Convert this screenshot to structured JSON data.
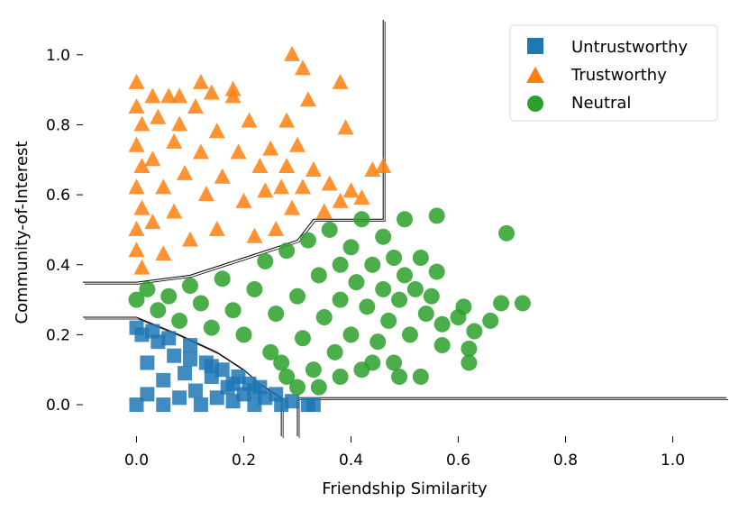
{
  "chart_data": {
    "type": "scatter",
    "title": "",
    "xlabel": "Friendship Similarity",
    "ylabel": "Community-of-Interest",
    "xlim": [
      -0.1,
      1.1
    ],
    "ylim": [
      -0.09,
      1.1
    ],
    "x_ticks": [
      0.0,
      0.2,
      0.4,
      0.6,
      0.8,
      1.0
    ],
    "x_tick_labels": [
      "0.0",
      "0.2",
      "0.4",
      "0.6",
      "0.8",
      "1.0"
    ],
    "y_ticks": [
      0.0,
      0.2,
      0.4,
      0.6,
      0.8,
      1.0
    ],
    "y_tick_labels": [
      "0.0",
      "0.2",
      "0.4",
      "0.6",
      "0.8",
      "1.0"
    ],
    "legend_position": "top-right",
    "grid": false,
    "series": [
      {
        "name": "Untrustworthy",
        "marker": "square",
        "color": "#1f77b4",
        "points": [
          [
            0.0,
            0.0
          ],
          [
            0.01,
            0.2
          ],
          [
            0.02,
            0.12
          ],
          [
            0.02,
            0.03
          ],
          [
            0.04,
            0.18
          ],
          [
            0.05,
            0.07
          ],
          [
            0.05,
            0.0
          ],
          [
            0.07,
            0.14
          ],
          [
            0.08,
            0.02
          ],
          [
            0.09,
            0.09
          ],
          [
            0.1,
            0.17
          ],
          [
            0.11,
            0.04
          ],
          [
            0.12,
            0.0
          ],
          [
            0.13,
            0.12
          ],
          [
            0.14,
            0.08
          ],
          [
            0.15,
            0.02
          ],
          [
            0.16,
            0.1
          ],
          [
            0.17,
            0.05
          ],
          [
            0.18,
            0.01
          ],
          [
            0.19,
            0.08
          ],
          [
            0.2,
            0.03
          ],
          [
            0.21,
            0.06
          ],
          [
            0.22,
            0.0
          ],
          [
            0.23,
            0.05
          ],
          [
            0.24,
            0.02
          ],
          [
            0.26,
            0.03
          ],
          [
            0.27,
            0.0
          ],
          [
            0.29,
            0.01
          ],
          [
            0.32,
            0.0
          ],
          [
            0.33,
            0.0
          ],
          [
            0.0,
            0.22
          ],
          [
            0.03,
            0.21
          ],
          [
            0.06,
            0.19
          ],
          [
            0.1,
            0.13
          ],
          [
            0.14,
            0.11
          ],
          [
            0.18,
            0.06
          ],
          [
            0.22,
            0.04
          ]
        ]
      },
      {
        "name": "Trustworthy",
        "marker": "triangle",
        "color": "#ff7f0e",
        "points": [
          [
            0.0,
            0.92
          ],
          [
            0.0,
            0.85
          ],
          [
            0.01,
            0.8
          ],
          [
            0.0,
            0.74
          ],
          [
            0.01,
            0.68
          ],
          [
            0.0,
            0.62
          ],
          [
            0.01,
            0.56
          ],
          [
            0.0,
            0.5
          ],
          [
            0.0,
            0.44
          ],
          [
            0.01,
            0.39
          ],
          [
            0.03,
            0.88
          ],
          [
            0.03,
            0.7
          ],
          [
            0.03,
            0.52
          ],
          [
            0.04,
            0.82
          ],
          [
            0.05,
            0.62
          ],
          [
            0.05,
            0.43
          ],
          [
            0.06,
            0.88
          ],
          [
            0.07,
            0.75
          ],
          [
            0.07,
            0.55
          ],
          [
            0.08,
            0.88
          ],
          [
            0.09,
            0.66
          ],
          [
            0.1,
            0.47
          ],
          [
            0.11,
            0.85
          ],
          [
            0.12,
            0.72
          ],
          [
            0.13,
            0.6
          ],
          [
            0.14,
            0.89
          ],
          [
            0.15,
            0.78
          ],
          [
            0.15,
            0.5
          ],
          [
            0.16,
            0.65
          ],
          [
            0.18,
            0.88
          ],
          [
            0.19,
            0.72
          ],
          [
            0.2,
            0.58
          ],
          [
            0.21,
            0.81
          ],
          [
            0.22,
            0.48
          ],
          [
            0.23,
            0.68
          ],
          [
            0.24,
            0.61
          ],
          [
            0.25,
            0.73
          ],
          [
            0.26,
            0.5
          ],
          [
            0.27,
            0.62
          ],
          [
            0.28,
            0.68
          ],
          [
            0.29,
            0.56
          ],
          [
            0.3,
            0.74
          ],
          [
            0.31,
            0.62
          ],
          [
            0.33,
            0.67
          ],
          [
            0.35,
            0.55
          ],
          [
            0.36,
            0.63
          ],
          [
            0.38,
            0.58
          ],
          [
            0.4,
            0.61
          ],
          [
            0.42,
            0.59
          ],
          [
            0.44,
            0.67
          ],
          [
            0.46,
            0.68
          ],
          [
            0.29,
            1.0
          ],
          [
            0.31,
            0.96
          ],
          [
            0.38,
            0.92
          ],
          [
            0.39,
            0.79
          ],
          [
            0.32,
            0.87
          ],
          [
            0.28,
            0.81
          ],
          [
            0.12,
            0.92
          ],
          [
            0.08,
            0.8
          ],
          [
            0.18,
            0.9
          ]
        ]
      },
      {
        "name": "Neutral",
        "marker": "circle",
        "color": "#2ca02c",
        "points": [
          [
            0.0,
            0.3
          ],
          [
            0.02,
            0.33
          ],
          [
            0.04,
            0.27
          ],
          [
            0.06,
            0.31
          ],
          [
            0.08,
            0.24
          ],
          [
            0.1,
            0.34
          ],
          [
            0.12,
            0.29
          ],
          [
            0.14,
            0.22
          ],
          [
            0.16,
            0.36
          ],
          [
            0.18,
            0.27
          ],
          [
            0.2,
            0.2
          ],
          [
            0.22,
            0.33
          ],
          [
            0.24,
            0.41
          ],
          [
            0.25,
            0.15
          ],
          [
            0.26,
            0.26
          ],
          [
            0.28,
            0.44
          ],
          [
            0.28,
            0.08
          ],
          [
            0.3,
            0.31
          ],
          [
            0.31,
            0.19
          ],
          [
            0.32,
            0.47
          ],
          [
            0.33,
            0.1
          ],
          [
            0.34,
            0.37
          ],
          [
            0.35,
            0.25
          ],
          [
            0.36,
            0.5
          ],
          [
            0.37,
            0.15
          ],
          [
            0.38,
            0.4
          ],
          [
            0.38,
            0.3
          ],
          [
            0.4,
            0.45
          ],
          [
            0.4,
            0.2
          ],
          [
            0.41,
            0.35
          ],
          [
            0.42,
            0.53
          ],
          [
            0.42,
            0.1
          ],
          [
            0.43,
            0.28
          ],
          [
            0.44,
            0.4
          ],
          [
            0.45,
            0.18
          ],
          [
            0.46,
            0.48
          ],
          [
            0.46,
            0.33
          ],
          [
            0.47,
            0.24
          ],
          [
            0.48,
            0.42
          ],
          [
            0.48,
            0.12
          ],
          [
            0.49,
            0.3
          ],
          [
            0.5,
            0.53
          ],
          [
            0.5,
            0.37
          ],
          [
            0.51,
            0.2
          ],
          [
            0.52,
            0.33
          ],
          [
            0.53,
            0.42
          ],
          [
            0.53,
            0.08
          ],
          [
            0.54,
            0.26
          ],
          [
            0.55,
            0.31
          ],
          [
            0.56,
            0.54
          ],
          [
            0.56,
            0.38
          ],
          [
            0.57,
            0.23
          ],
          [
            0.57,
            0.17
          ],
          [
            0.6,
            0.25
          ],
          [
            0.61,
            0.28
          ],
          [
            0.62,
            0.16
          ],
          [
            0.62,
            0.12
          ],
          [
            0.63,
            0.21
          ],
          [
            0.66,
            0.24
          ],
          [
            0.68,
            0.29
          ],
          [
            0.69,
            0.49
          ],
          [
            0.72,
            0.29
          ],
          [
            0.49,
            0.08
          ],
          [
            0.44,
            0.12
          ],
          [
            0.38,
            0.08
          ],
          [
            0.34,
            0.05
          ],
          [
            0.3,
            0.05
          ],
          [
            0.27,
            0.12
          ]
        ]
      }
    ],
    "decision_boundaries": [
      {
        "name": "boundary-trustworthy",
        "points": [
          [
            -0.1,
            0.35
          ],
          [
            0.0,
            0.35
          ],
          [
            0.1,
            0.37
          ],
          [
            0.2,
            0.42
          ],
          [
            0.3,
            0.47
          ],
          [
            0.33,
            0.53
          ],
          [
            0.46,
            0.53
          ],
          [
            0.46,
            1.1
          ]
        ]
      },
      {
        "name": "boundary-untrustworthy",
        "points": [
          [
            -0.1,
            0.25
          ],
          [
            0.0,
            0.25
          ],
          [
            0.08,
            0.2
          ],
          [
            0.15,
            0.15
          ],
          [
            0.2,
            0.1
          ],
          [
            0.23,
            0.06
          ],
          [
            0.27,
            0.02
          ],
          [
            0.27,
            -0.09
          ]
        ]
      },
      {
        "name": "boundary-floor",
        "points": [
          [
            0.3,
            -0.09
          ],
          [
            0.3,
            0.02
          ],
          [
            1.1,
            0.02
          ]
        ]
      }
    ]
  }
}
